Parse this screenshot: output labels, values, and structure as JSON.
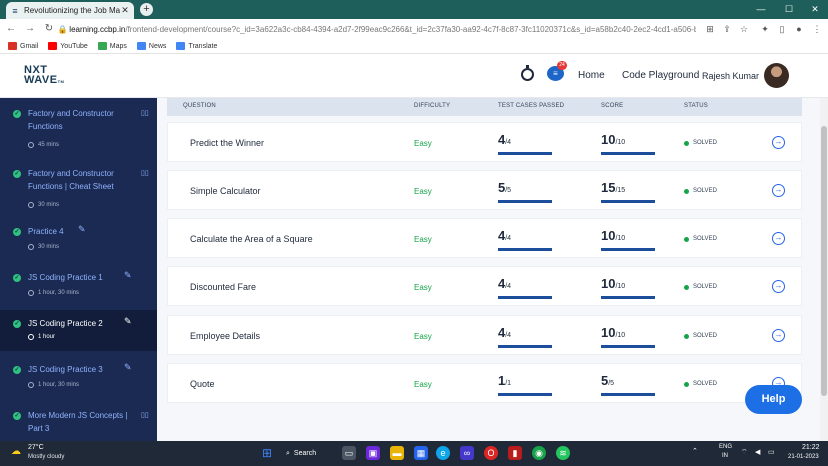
{
  "browser": {
    "tab_title": "Revolutionizing the Job Market |",
    "url_host": "learning.ccbp.in",
    "url_path": "/frontend-development/course?c_id=3a622a3c-cb84-4394-a2d7-2f99eac9c266&t_id=2c37fa30-aa92-4c7f-8c87-3fc11020371c&s_id=a58b2c40-2ec2-4cd1-a506-b0acdf7...",
    "bookmarks": [
      {
        "label": "Gmail",
        "icon": "gmail-icon",
        "color": "#d93025"
      },
      {
        "label": "YouTube",
        "icon": "youtube-icon",
        "color": "#ff0000"
      },
      {
        "label": "Maps",
        "icon": "maps-icon",
        "color": "#34a853"
      },
      {
        "label": "News",
        "icon": "news-icon",
        "color": "#4285f4"
      },
      {
        "label": "Translate",
        "icon": "translate-icon",
        "color": "#4285f4"
      }
    ]
  },
  "header": {
    "logo_top": "NXT",
    "logo_bottom": "WAVE",
    "logo_tm": "TM",
    "notification_count": "24",
    "home_label": "Home",
    "playground_label": "Code Playground",
    "user_name": "Rajesh Kumar"
  },
  "sidebar": {
    "items": [
      {
        "title": "Factory and Constructor Functions",
        "duration": "45 mins",
        "icon": "book-icon",
        "active": false
      },
      {
        "title": "Factory and Constructor Functions | Cheat Sheet",
        "duration": "30 mins",
        "icon": "book-icon",
        "active": false
      },
      {
        "title": "Practice 4",
        "duration": "30 mins",
        "icon": "pencil-icon",
        "active": false
      },
      {
        "title": "JS Coding Practice 1",
        "duration": "1 hour, 30 mins",
        "icon": "pencil-icon",
        "active": false
      },
      {
        "title": "JS Coding Practice 2",
        "duration": "1 hour",
        "icon": "pencil-icon",
        "active": true
      },
      {
        "title": "JS Coding Practice 3",
        "duration": "1 hour, 30 mins",
        "icon": "pencil-icon",
        "active": false
      },
      {
        "title": "More Modern JS Concepts | Part 3",
        "duration": "",
        "icon": "book-icon",
        "active": false
      }
    ]
  },
  "table": {
    "headers": {
      "question": "QUESTION",
      "difficulty": "DIFFICULTY",
      "test_cases": "TEST CASES PASSED",
      "score": "SCORE",
      "status": "STATUS"
    },
    "rows": [
      {
        "question": "Predict the Winner",
        "difficulty": "Easy",
        "passed": "4",
        "total": "/4",
        "score": "10",
        "max": "/10",
        "status": "SOLVED"
      },
      {
        "question": "Simple Calculator",
        "difficulty": "Easy",
        "passed": "5",
        "total": "/5",
        "score": "15",
        "max": "/15",
        "status": "SOLVED"
      },
      {
        "question": "Calculate the Area of a Square",
        "difficulty": "Easy",
        "passed": "4",
        "total": "/4",
        "score": "10",
        "max": "/10",
        "status": "SOLVED"
      },
      {
        "question": "Discounted Fare",
        "difficulty": "Easy",
        "passed": "4",
        "total": "/4",
        "score": "10",
        "max": "/10",
        "status": "SOLVED"
      },
      {
        "question": "Employee Details",
        "difficulty": "Easy",
        "passed": "4",
        "total": "/4",
        "score": "10",
        "max": "/10",
        "status": "SOLVED"
      },
      {
        "question": "Quote",
        "difficulty": "Easy",
        "passed": "1",
        "total": "/1",
        "score": "5",
        "max": "/5",
        "status": "SOLVED"
      }
    ]
  },
  "help_label": "Help",
  "taskbar": {
    "temperature": "27°C",
    "weather": "Mostly cloudy",
    "search_label": "Search",
    "lang_top": "ENG",
    "lang_bottom": "IN",
    "time": "21:22",
    "date": "21-01-2023"
  },
  "colors": {
    "sidebar_bg": "#1b2a52",
    "accent": "#1d6fe6",
    "easy": "#16a34a",
    "solved_dot": "#16a34a"
  }
}
